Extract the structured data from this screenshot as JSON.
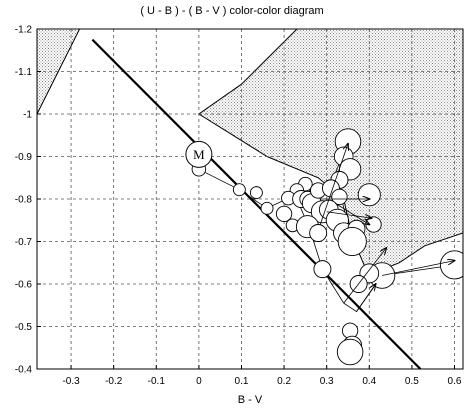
{
  "chart_data": {
    "type": "scatter",
    "title": "( U - B ) - ( B - V ) color-color diagram",
    "xlabel": "B - V",
    "ylabel": "",
    "xlim": [
      -0.38,
      0.62
    ],
    "ylim": [
      -1.2,
      -0.4
    ],
    "y_inverted": true,
    "grid": true,
    "x_ticks": [
      -0.3,
      -0.2,
      -0.1,
      0,
      0.1,
      0.2,
      0.3,
      0.4,
      0.5,
      0.6
    ],
    "x_tick_labels": [
      "-0.3",
      "-0.2",
      "-0.1",
      "0",
      "0.1",
      "0.2",
      "0.3",
      "0.4",
      "0.5",
      "0.6"
    ],
    "y_ticks": [
      -1.2,
      -1.1,
      -1.0,
      -0.9,
      -0.8,
      -0.7,
      -0.6,
      -0.5,
      -0.4
    ],
    "y_tick_labels": [
      "-1.2",
      "-1.1",
      "-1",
      "-0.9",
      "-0.8",
      "-0.7",
      "-0.6",
      "-0.5",
      "-0.4"
    ],
    "marker_label": "M",
    "marker_position": [
      0,
      -0.905
    ],
    "reference_line": [
      [
        -0.25,
        -1.175
      ],
      [
        0.52,
        -0.4
      ]
    ],
    "excluded_region_left": [
      [
        -0.38,
        -1.2
      ],
      [
        -0.28,
        -1.2
      ],
      [
        -0.38,
        -1.0
      ]
    ],
    "excluded_region_right": [
      [
        0.23,
        -1.2
      ],
      [
        0.62,
        -1.2
      ],
      [
        0.62,
        -0.72
      ],
      [
        0.53,
        -0.69
      ],
      [
        0.47,
        -0.65
      ],
      [
        0.42,
        -0.63
      ],
      [
        0.39,
        -0.64
      ],
      [
        0.36,
        -0.71
      ],
      [
        0.34,
        -0.8
      ],
      [
        0.28,
        -0.85
      ],
      [
        0.16,
        -0.9
      ],
      [
        0.0,
        -1.0
      ],
      [
        0.1,
        -1.07
      ]
    ],
    "points": [
      {
        "x": 0.35,
        "y": -0.935,
        "r": 0.03
      },
      {
        "x": 0.34,
        "y": -0.9,
        "r": 0.022
      },
      {
        "x": 0.355,
        "y": -0.87,
        "r": 0.025
      },
      {
        "x": 0.33,
        "y": -0.845,
        "r": 0.02
      },
      {
        "x": 0.0,
        "y": -0.87,
        "r": 0.016
      },
      {
        "x": 0.095,
        "y": -0.822,
        "r": 0.014
      },
      {
        "x": 0.135,
        "y": -0.815,
        "r": 0.014
      },
      {
        "x": 0.16,
        "y": -0.778,
        "r": 0.014
      },
      {
        "x": 0.2,
        "y": -0.765,
        "r": 0.018
      },
      {
        "x": 0.22,
        "y": -0.738,
        "r": 0.015
      },
      {
        "x": 0.25,
        "y": -0.835,
        "r": 0.016
      },
      {
        "x": 0.23,
        "y": -0.82,
        "r": 0.016
      },
      {
        "x": 0.21,
        "y": -0.802,
        "r": 0.016
      },
      {
        "x": 0.24,
        "y": -0.8,
        "r": 0.02
      },
      {
        "x": 0.255,
        "y": -0.8,
        "r": 0.018
      },
      {
        "x": 0.265,
        "y": -0.79,
        "r": 0.022
      },
      {
        "x": 0.28,
        "y": -0.82,
        "r": 0.018
      },
      {
        "x": 0.31,
        "y": -0.825,
        "r": 0.02
      },
      {
        "x": 0.33,
        "y": -0.805,
        "r": 0.018
      },
      {
        "x": 0.29,
        "y": -0.77,
        "r": 0.026
      },
      {
        "x": 0.305,
        "y": -0.775,
        "r": 0.022
      },
      {
        "x": 0.325,
        "y": -0.75,
        "r": 0.026
      },
      {
        "x": 0.255,
        "y": -0.735,
        "r": 0.026
      },
      {
        "x": 0.28,
        "y": -0.72,
        "r": 0.02
      },
      {
        "x": 0.34,
        "y": -0.72,
        "r": 0.024
      },
      {
        "x": 0.37,
        "y": -0.73,
        "r": 0.02
      },
      {
        "x": 0.4,
        "y": -0.81,
        "r": 0.026
      },
      {
        "x": 0.41,
        "y": -0.74,
        "r": 0.018
      },
      {
        "x": 0.36,
        "y": -0.7,
        "r": 0.033
      },
      {
        "x": 0.29,
        "y": -0.635,
        "r": 0.02
      },
      {
        "x": 0.43,
        "y": -0.62,
        "r": 0.03
      },
      {
        "x": 0.4,
        "y": -0.625,
        "r": 0.022
      },
      {
        "x": 0.375,
        "y": -0.6,
        "r": 0.02
      },
      {
        "x": 0.355,
        "y": -0.49,
        "r": 0.018
      },
      {
        "x": 0.36,
        "y": -0.455,
        "r": 0.022
      },
      {
        "x": 0.355,
        "y": -0.44,
        "r": 0.03
      },
      {
        "x": 0.6,
        "y": -0.645,
        "r": 0.033
      }
    ],
    "arrows": [
      {
        "from": [
          0.285,
          -0.74
        ],
        "to": [
          0.35,
          -0.93
        ]
      },
      {
        "from": [
          0.285,
          -0.8
        ],
        "to": [
          0.4,
          -0.8
        ]
      },
      {
        "from": [
          0.3,
          -0.77
        ],
        "to": [
          0.405,
          -0.755
        ]
      },
      {
        "from": [
          0.32,
          -0.79
        ],
        "to": [
          0.4,
          -0.74
        ]
      },
      {
        "from": [
          0.43,
          -0.62
        ],
        "to": [
          0.6,
          -0.655
        ]
      },
      {
        "from": [
          0.37,
          -0.535
        ],
        "to": [
          0.415,
          -0.6
        ]
      },
      {
        "from": [
          0.34,
          -0.555
        ],
        "to": [
          0.44,
          -0.685
        ]
      }
    ],
    "trajectory": [
      [
        0.6,
        -0.645
      ],
      [
        0.43,
        -0.62
      ],
      [
        0.37,
        -0.535
      ],
      [
        0.34,
        -0.555
      ],
      [
        0.29,
        -0.635
      ],
      [
        0.26,
        -0.73
      ],
      [
        0.23,
        -0.8
      ],
      [
        0.36,
        -0.7
      ],
      [
        0.32,
        -0.86
      ],
      [
        0.35,
        -0.935
      ],
      [
        0.33,
        -0.8
      ],
      [
        0.29,
        -0.77
      ],
      [
        0.25,
        -0.835
      ],
      [
        0.21,
        -0.802
      ],
      [
        0.16,
        -0.778
      ],
      [
        0.095,
        -0.822
      ],
      [
        0.0,
        -0.87
      ],
      [
        0.0,
        -0.905
      ]
    ],
    "colors": {
      "background": "#ffffff",
      "ink": "#000000",
      "hatch": "#8a8a8a",
      "marker_fill": "#ffffff"
    }
  }
}
